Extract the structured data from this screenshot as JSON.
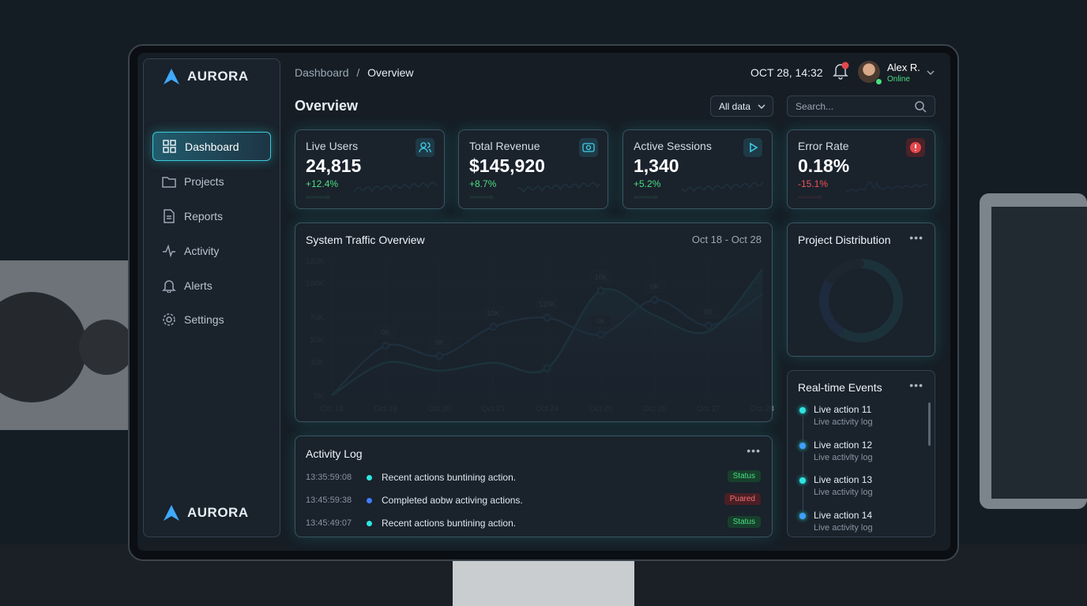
{
  "sidebar": {
    "brand": "AURORA",
    "nav": [
      "Dashboard",
      "Projects",
      "Reports",
      "Activity",
      "Alerts",
      "Settings"
    ],
    "footer_brand": "AURORA"
  },
  "header": {
    "breadcrumb": [
      "Dashboard",
      "/",
      "Overview"
    ],
    "datetime": "OCT 28, 14:32",
    "user": {
      "name": "Alex R.",
      "status": "Online"
    }
  },
  "toolbar": {
    "title": "Overview",
    "filter": "All data",
    "search_placeholder": "Search..."
  },
  "kpis": [
    {
      "label": "Live Users",
      "value": "24,815",
      "delta": "+12.4%"
    },
    {
      "label": "Total Revenue",
      "value": "$145,920",
      "delta": "+8.7%"
    },
    {
      "label": "Active Sessions",
      "value": "1,340",
      "delta": "+5.2%"
    },
    {
      "label": "Error Rate",
      "value": "0.18%",
      "delta": "-15.1%"
    }
  ],
  "chart_data": {
    "type": "line",
    "title": "System Traffic Overview",
    "subtitle": "Oct 18 - Oct 28",
    "categories": [
      "Oct 18",
      "Oct 19",
      "Oct 20",
      "Oct 21",
      "Oct 24",
      "Oct 25",
      "Oct 26",
      "Oct 27",
      "Oct 28"
    ],
    "series": [
      {
        "color": "#3fb6ff",
        "values": [
          0,
          44,
          35,
          61,
          69,
          54,
          85,
          62,
          90
        ]
      },
      {
        "color": "#2ee6e0",
        "area": true,
        "values": [
          0,
          29,
          22,
          29,
          24,
          93,
          71,
          57,
          112
        ]
      }
    ],
    "ylim": [
      0,
      120
    ],
    "yticks": [
      {
        "value": 0,
        "label": "0K"
      },
      {
        "value": 30,
        "label": "30K"
      },
      {
        "value": 50,
        "label": "50K"
      },
      {
        "value": 70,
        "label": "70K"
      },
      {
        "value": 100,
        "label": "100K"
      },
      {
        "value": 120,
        "label": "120K"
      }
    ],
    "annotations": [
      "0K",
      "0K",
      "10K",
      "120K",
      "10K",
      "0K",
      "0K",
      "0K"
    ],
    "grid": true
  },
  "distribution": {
    "title": "Project Distribution",
    "values": [
      60,
      25,
      15
    ],
    "colors": [
      "#2ee6e0",
      "#3f7fff",
      "#3a4653"
    ]
  },
  "events": {
    "title": "Real-time Events",
    "items": [
      {
        "title": "Live action 11",
        "detail": "Live activity log"
      },
      {
        "title": "Live action 12",
        "detail": "Live activlty log"
      },
      {
        "title": "Live action 13",
        "detail": "Live activity log"
      },
      {
        "title": "Live action 14",
        "detail": "Live activity log"
      }
    ]
  },
  "activity_log": {
    "title": "Activity Log",
    "rows": [
      [
        "13:35:59:08",
        "Recent actions buntining action.",
        "Status"
      ],
      [
        "13:45:59:38",
        "Completed aobw activing actions.",
        "Puared"
      ],
      [
        "13:45:49:07",
        "Recent actions buntining action.",
        "Status"
      ]
    ]
  }
}
